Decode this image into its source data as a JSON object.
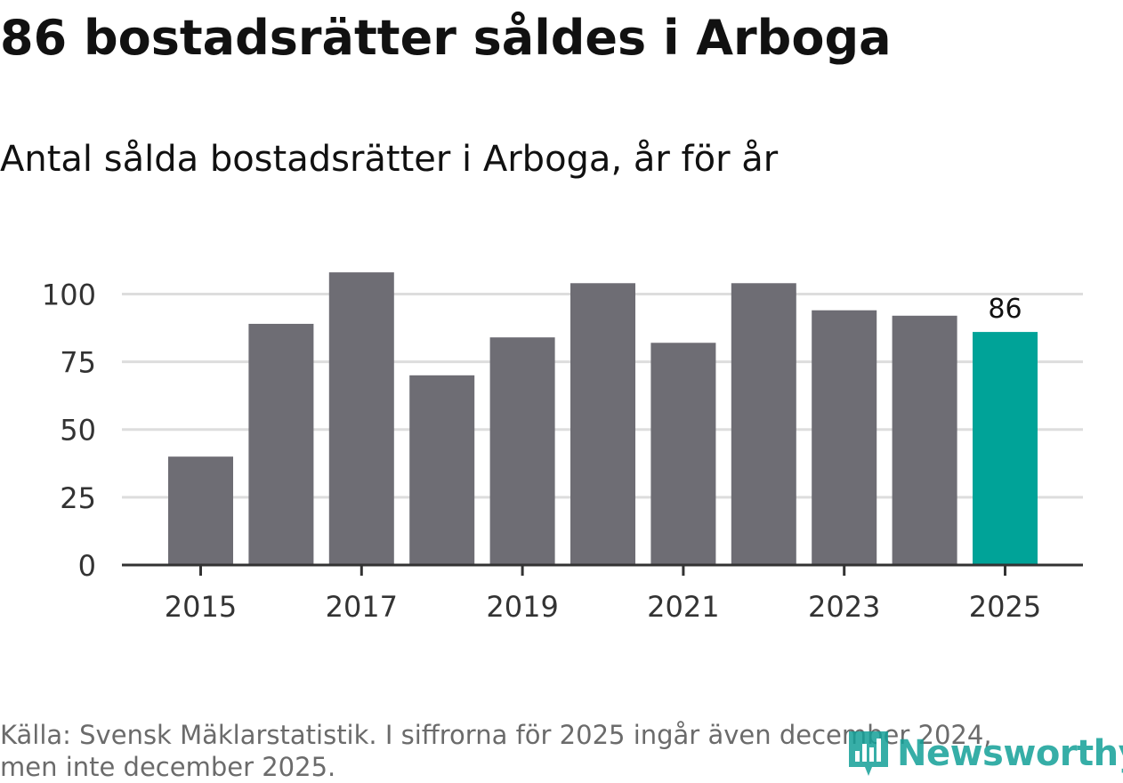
{
  "title": "86 bostadsrätter såldes i Arboga",
  "subtitle": "Antal sålda bostadsrätter i Arboga, år för år",
  "source": "Källa: Svensk Mäklarstatistik. I siffrorna för 2025 ingår även december 2024,\nmen inte december 2025.",
  "logo": {
    "text": "Newsworthy",
    "icon": "newsworthy-chart-icon",
    "color": "#14a098"
  },
  "chart_data": {
    "type": "bar",
    "title": "86 bostadsrätter såldes i Arboga",
    "subtitle": "Antal sålda bostadsrätter i Arboga, år för år",
    "categories": [
      "2015",
      "2016",
      "2017",
      "2018",
      "2019",
      "2020",
      "2021",
      "2022",
      "2023",
      "2024",
      "2025"
    ],
    "values": [
      40,
      89,
      108,
      70,
      84,
      104,
      82,
      104,
      94,
      92,
      86
    ],
    "x_tick_labels": [
      "2015",
      "2017",
      "2019",
      "2021",
      "2023",
      "2025"
    ],
    "y_ticks": [
      0,
      25,
      50,
      75,
      100
    ],
    "ylim": [
      0,
      110
    ],
    "grid": true,
    "highlight": {
      "category": "2025",
      "label": "86"
    },
    "colors": {
      "bar": "#6e6d74",
      "highlight": "#00a398",
      "grid": "#dddddd",
      "axis": "#333333",
      "tick_text": "#333333"
    }
  }
}
